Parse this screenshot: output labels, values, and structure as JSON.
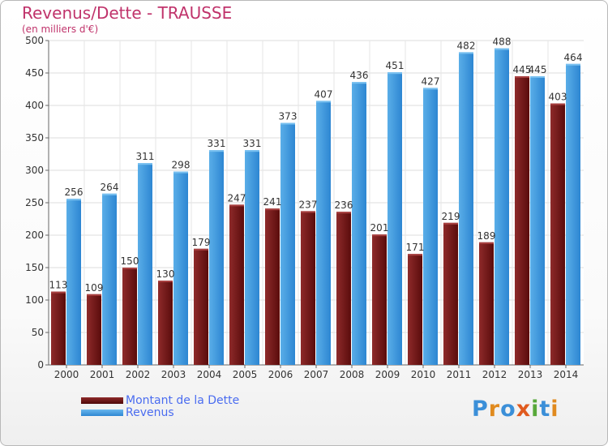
{
  "title": "Revenus/Dette - TRAUSSE",
  "subtitle": "(en milliers d'€)",
  "logo_text": "Proxiti",
  "colors": {
    "debt": "#7a1a1a",
    "revenue": "#3f97df",
    "title": "#c0336b",
    "legend_text": "#4a6cf0"
  },
  "chart_data": {
    "type": "bar",
    "title": "Revenus/Dette - TRAUSSE",
    "subtitle": "(en milliers d'€)",
    "categories": [
      "2000",
      "2001",
      "2002",
      "2003",
      "2004",
      "2005",
      "2006",
      "2007",
      "2008",
      "2009",
      "2010",
      "2011",
      "2012",
      "2013",
      "2014"
    ],
    "series": [
      {
        "name": "Montant de la Dette",
        "values": [
          113,
          109,
          150,
          130,
          179,
          247,
          241,
          237,
          236,
          201,
          171,
          219,
          189,
          445,
          403
        ]
      },
      {
        "name": "Revenus",
        "values": [
          256,
          264,
          311,
          298,
          331,
          331,
          373,
          407,
          436,
          451,
          427,
          482,
          488,
          445,
          464
        ]
      }
    ],
    "ylim": [
      0,
      500
    ],
    "yticks": [
      "0",
      "50",
      "100",
      "150",
      "200",
      "250",
      "300",
      "350",
      "400",
      "450",
      "500"
    ],
    "grid": true,
    "legend_position": "bottom-left"
  }
}
